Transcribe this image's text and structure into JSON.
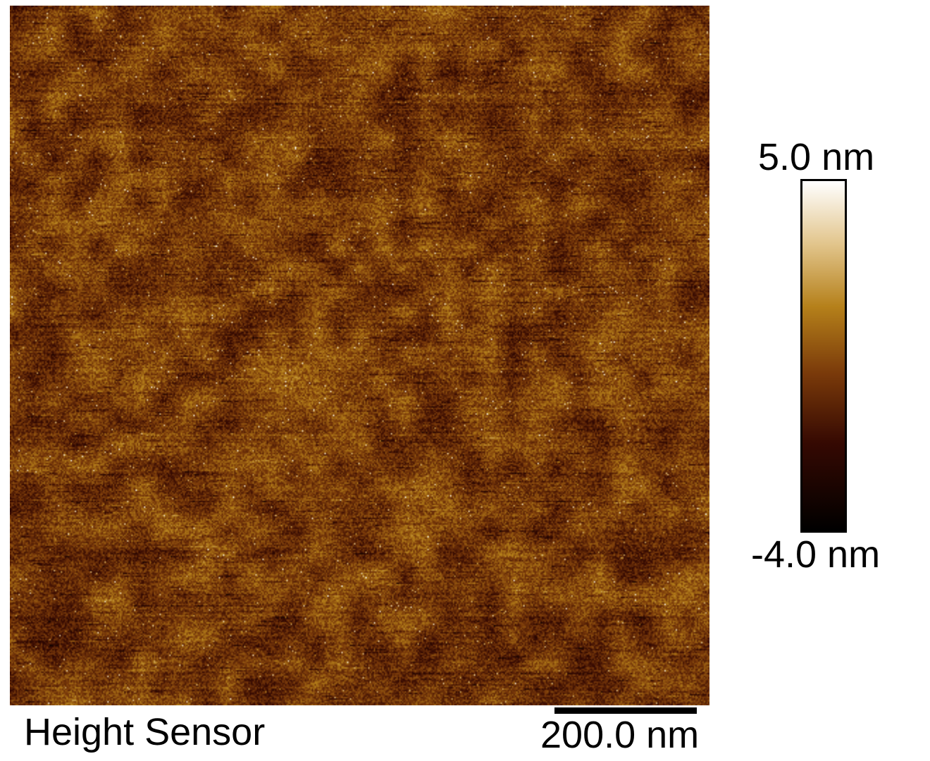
{
  "image": {
    "channel_label": "Height Sensor",
    "scale_bar_label": "200.0 nm",
    "colormap": {
      "max_label": "5.0 nm",
      "min_label": "-4.0 nm",
      "stops": [
        "#ffffff",
        "#e0c48a",
        "#b5801a",
        "#7a3a0a",
        "#3a0a02",
        "#000000"
      ]
    },
    "texture_base_color": "#8a4a0c"
  }
}
